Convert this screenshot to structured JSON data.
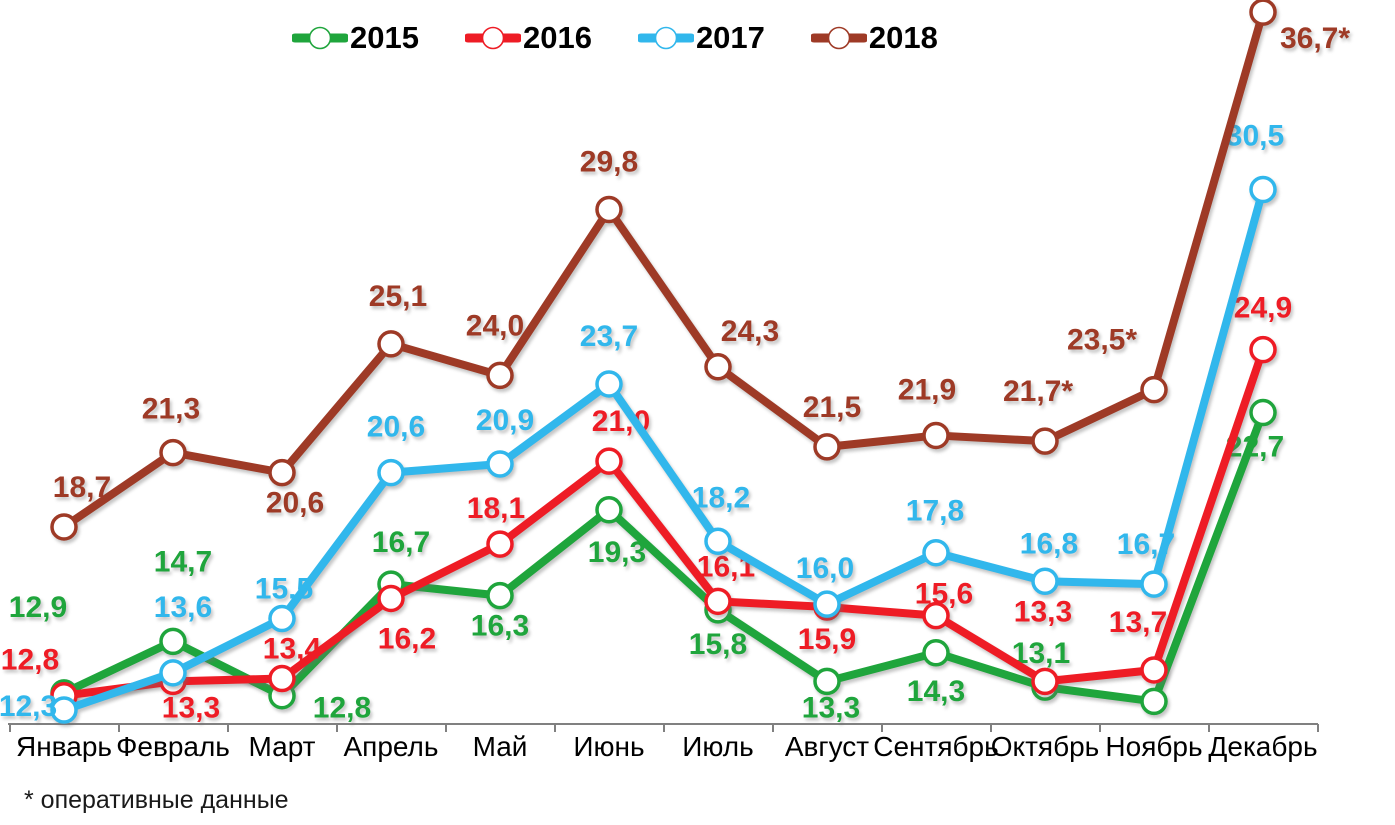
{
  "footnote": "* оперативные данные",
  "chart_data": {
    "type": "line",
    "title": "",
    "xlabel": "",
    "ylabel": "",
    "grid": false,
    "legend_position": "top",
    "axis_color": "#808080",
    "ylim": [
      11.8,
      37.5
    ],
    "categories": [
      "Январь",
      "Февраль",
      "Март",
      "Апрель",
      "Май",
      "Июнь",
      "Июль",
      "Август",
      "Сентябрь",
      "Октябрь",
      "Ноябрь",
      "Декабрь"
    ],
    "footnote": "* оперативные данные",
    "series": [
      {
        "name": "2015",
        "color": "#1FA53C",
        "values": [
          12.9,
          14.7,
          12.8,
          16.7,
          16.3,
          19.3,
          15.8,
          13.3,
          14.3,
          13.1,
          12.6,
          22.7
        ],
        "labels": [
          "12,9",
          "14,7",
          "12,8",
          "16,7",
          "16,3",
          "19,3",
          "15,8",
          "13,3",
          "14,3",
          "13,1",
          "",
          "22,7"
        ],
        "label_offsets": [
          [
            -26,
            -86
          ],
          [
            10,
            -80
          ],
          [
            60,
            12
          ],
          [
            10,
            -42
          ],
          [
            0,
            30
          ],
          [
            8,
            42
          ],
          [
            0,
            34
          ],
          [
            4,
            26
          ],
          [
            0,
            38
          ],
          [
            -4,
            -34
          ],
          [
            0,
            0
          ],
          [
            -8,
            34
          ]
        ]
      },
      {
        "name": "2016",
        "color": "#EE1C25",
        "values": [
          12.8,
          13.3,
          13.4,
          16.2,
          18.1,
          21.0,
          16.1,
          15.9,
          15.6,
          13.3,
          13.7,
          24.9
        ],
        "labels": [
          "12,8",
          "13,3",
          "13,4",
          "16,2",
          "18,1",
          "21,0",
          "16,1",
          "15,9",
          "15,6",
          "13,3",
          "13,7",
          "24,9"
        ],
        "label_offsets": [
          [
            -34,
            -36
          ],
          [
            18,
            26
          ],
          [
            10,
            -30
          ],
          [
            16,
            40
          ],
          [
            -4,
            -36
          ],
          [
            12,
            -40
          ],
          [
            8,
            -35
          ],
          [
            0,
            32
          ],
          [
            8,
            -22
          ],
          [
            -2,
            -70
          ],
          [
            -16,
            -48
          ],
          [
            0,
            -42
          ]
        ]
      },
      {
        "name": "2017",
        "color": "#31B7EC",
        "values": [
          12.3,
          13.6,
          15.5,
          20.6,
          20.9,
          23.7,
          18.2,
          16.0,
          17.8,
          16.8,
          16.7,
          30.5
        ],
        "labels": [
          "12,3",
          "13,6",
          "15,5",
          "20,6",
          "20,9",
          "23,7",
          "18,2",
          "16,0",
          "17,8",
          "16,8",
          "16,7",
          "30,5"
        ],
        "label_offsets": [
          [
            -36,
            -4
          ],
          [
            10,
            -66
          ],
          [
            2,
            -30
          ],
          [
            5,
            -46
          ],
          [
            5,
            -44
          ],
          [
            0,
            -48
          ],
          [
            3,
            -44
          ],
          [
            -2,
            -36
          ],
          [
            -1,
            -42
          ],
          [
            4,
            -38
          ],
          [
            -8,
            -40
          ],
          [
            -8,
            -54
          ]
        ]
      },
      {
        "name": "2018",
        "color": "#9E3A26",
        "values": [
          18.7,
          21.3,
          20.6,
          25.1,
          24.0,
          29.8,
          24.3,
          21.5,
          21.9,
          21.7,
          23.5,
          36.7
        ],
        "labels": [
          "18,7",
          "21,3",
          "20,6",
          "25,1",
          "24,0",
          "29,8",
          "24,3",
          "21,5",
          "21,9",
          "21,7*",
          "23,5*",
          "36,7*"
        ],
        "label_offsets": [
          [
            18,
            -40
          ],
          [
            -2,
            -44
          ],
          [
            13,
            30
          ],
          [
            7,
            -48
          ],
          [
            -5,
            -50
          ],
          [
            0,
            -48
          ],
          [
            32,
            -36
          ],
          [
            5,
            -40
          ],
          [
            -9,
            -46
          ],
          [
            -7,
            -50
          ],
          [
            -52,
            -50
          ],
          [
            52,
            26
          ]
        ]
      }
    ]
  }
}
